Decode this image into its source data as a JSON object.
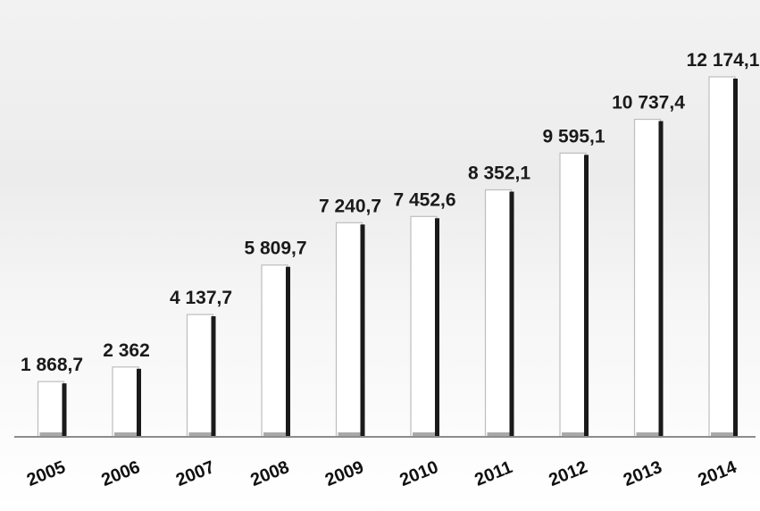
{
  "chart_data": {
    "type": "bar",
    "title": "",
    "xlabel": "",
    "ylabel": "",
    "categories": [
      "2005",
      "2006",
      "2007",
      "2008",
      "2009",
      "2010",
      "2011",
      "2012",
      "2013",
      "2014"
    ],
    "values": [
      1868.7,
      2362,
      4137.7,
      5809.7,
      7240.7,
      7452.6,
      8352.1,
      9595.1,
      10737.4,
      12174.1
    ],
    "value_labels": [
      "1 868,7",
      "2 362",
      "4 137,7",
      "5 809,7",
      "7 240,7",
      "7 452,6",
      "8 352,1",
      "9 595,1",
      "10 737,4",
      "12 174,1"
    ],
    "ylim": [
      0,
      12500
    ],
    "grid": false,
    "legend": "none",
    "colors": {
      "bar_fill": "#ffffff",
      "bar_shadow": "#1a1a1a",
      "bar_outline": "#bdbdbd",
      "baseline": "#8c8c8c",
      "text": "#1a1a1a"
    }
  }
}
